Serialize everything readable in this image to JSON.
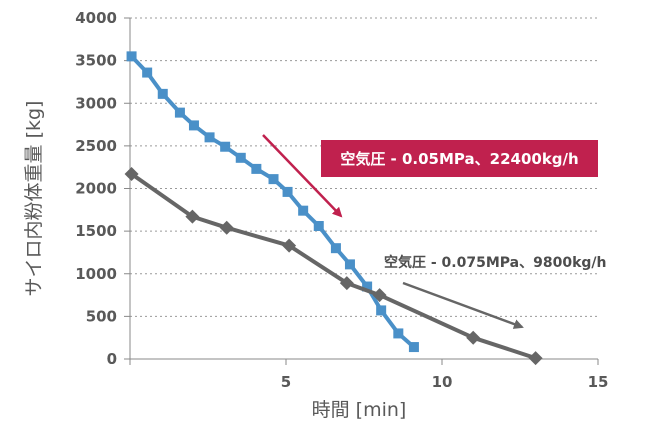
{
  "chart_data": {
    "type": "line",
    "title": "",
    "xlabel": "時間 [min]",
    "ylabel": "サイロ内粉体重量 [kg]",
    "xlim": [
      0,
      15
    ],
    "ylim": [
      0,
      4000
    ],
    "x_ticks": [
      5,
      10,
      15
    ],
    "y_ticks": [
      0,
      500,
      1000,
      1500,
      2000,
      2500,
      3000,
      3500,
      4000
    ],
    "grid": "horizontal dotted",
    "legend": "none",
    "series": [
      {
        "color": "#4a90c8",
        "marker": "square",
        "x": [
          0.05,
          0.55,
          1.05,
          1.6,
          2.05,
          2.55,
          3.05,
          3.55,
          4.05,
          4.6,
          5.05,
          5.55,
          6.05,
          6.6,
          7.05,
          7.6,
          8.05,
          8.6,
          9.1
        ],
        "y": [
          3550,
          3360,
          3110,
          2890,
          2740,
          2600,
          2490,
          2360,
          2230,
          2110,
          1960,
          1740,
          1560,
          1300,
          1110,
          850,
          570,
          300,
          140
        ]
      },
      {
        "color": "#666666",
        "marker": "diamond",
        "x": [
          0.05,
          2.0,
          3.1,
          5.1,
          6.95,
          8.0,
          11.0,
          13.0
        ],
        "y": [
          2170,
          1670,
          1540,
          1330,
          890,
          750,
          250,
          10
        ]
      }
    ],
    "annotations": [
      {
        "text": "空気圧 - 0.05MPa、22400kg/h",
        "background": "#c0214e",
        "text_color": "#ffffff",
        "arrow_color": "#c0214e"
      },
      {
        "text": "空気圧 - 0.075MPa、9800kg/h",
        "text_color": "#4d4d4d",
        "arrow_color": "#666666"
      }
    ]
  }
}
